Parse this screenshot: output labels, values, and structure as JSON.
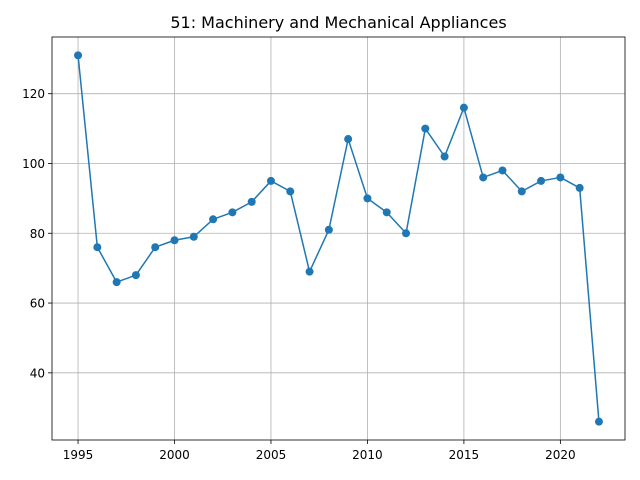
{
  "chart_data": {
    "type": "line",
    "title": "51: Machinery and Mechanical Appliances",
    "xlabel": "",
    "ylabel": "",
    "x": [
      1995,
      1996,
      1997,
      1998,
      1999,
      2000,
      2001,
      2002,
      2003,
      2004,
      2005,
      2006,
      2007,
      2008,
      2009,
      2010,
      2011,
      2012,
      2013,
      2014,
      2015,
      2016,
      2017,
      2018,
      2019,
      2020,
      2021,
      2022
    ],
    "series": [
      {
        "values": [
          131,
          76,
          66,
          68,
          76,
          78,
          79,
          84,
          86,
          89,
          95,
          92,
          69,
          81,
          107,
          90,
          86,
          80,
          110,
          102,
          116,
          96,
          98,
          92,
          95,
          96,
          93,
          26
        ],
        "color": "#1f77b4",
        "marker": "circle"
      }
    ],
    "xlim": [
      1993.65,
      2023.35
    ],
    "ylim": [
      20.75,
      136.25
    ],
    "xticks": [
      1995,
      2000,
      2005,
      2010,
      2015,
      2020
    ],
    "xtick_labels": [
      "1995",
      "2000",
      "2005",
      "2010",
      "2015",
      "2020"
    ],
    "yticks": [
      40,
      60,
      80,
      100,
      120
    ],
    "ytick_labels": [
      "40",
      "60",
      "80",
      "100",
      "120"
    ],
    "grid": true
  }
}
